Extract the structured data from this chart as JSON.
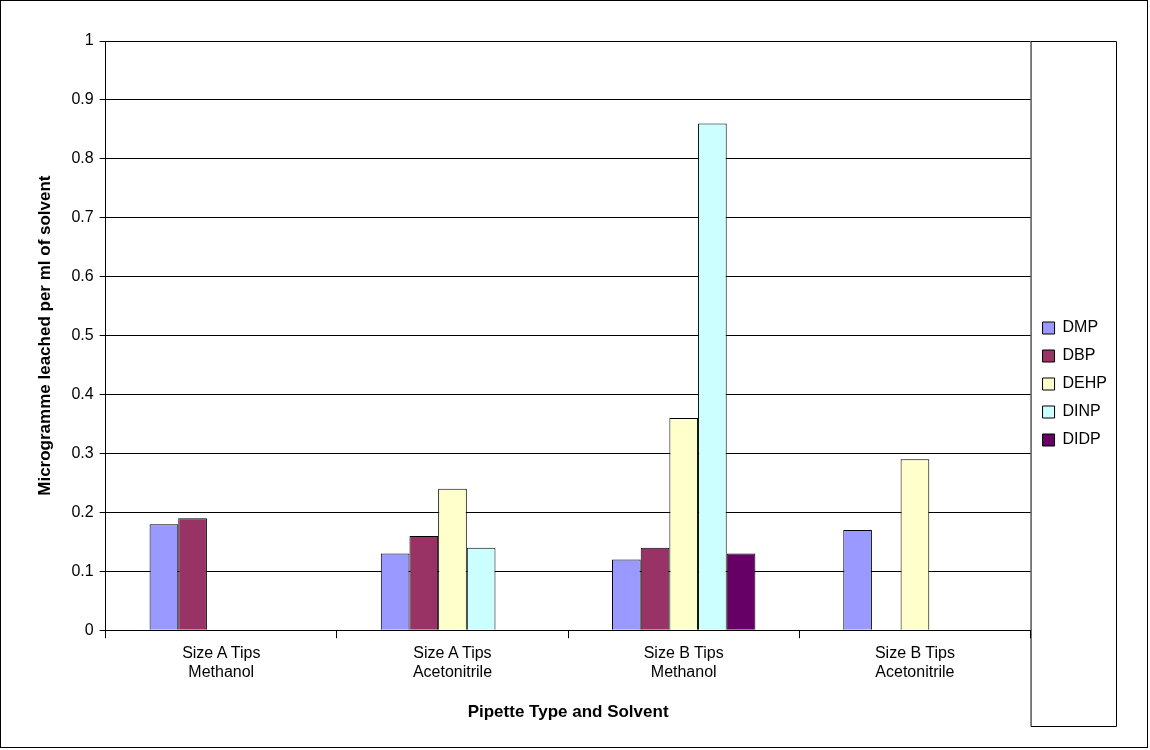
{
  "chart_data": {
    "type": "bar",
    "xlabel": "Pipette Type and Solvent",
    "ylabel": "Microgramme leached per ml of solvent",
    "categories": [
      "Size A Tips Methanol",
      "Size A Tips Acetonitrile",
      "Size B Tips Methanol",
      "Size B Tips Acetonitrile"
    ],
    "series": [
      {
        "name": "DMP",
        "color": "#9999ff",
        "values": [
          0.18,
          0.13,
          0.12,
          0.17
        ]
      },
      {
        "name": "DBP",
        "color": "#993366",
        "values": [
          0.19,
          0.16,
          0.14,
          null
        ]
      },
      {
        "name": "DEHP",
        "color": "#ffffcc",
        "values": [
          null,
          0.24,
          0.36,
          0.29
        ]
      },
      {
        "name": "DINP",
        "color": "#ccffff",
        "values": [
          null,
          0.14,
          0.86,
          null
        ]
      },
      {
        "name": "DIDP",
        "color": "#660066",
        "values": [
          null,
          null,
          0.13,
          null
        ]
      }
    ],
    "ylim": [
      0,
      1
    ],
    "yticks": [
      0,
      0.1,
      0.2,
      0.3,
      0.4,
      0.5,
      0.6,
      0.7,
      0.8,
      0.9,
      1
    ],
    "grid": "y",
    "legend": "right"
  }
}
